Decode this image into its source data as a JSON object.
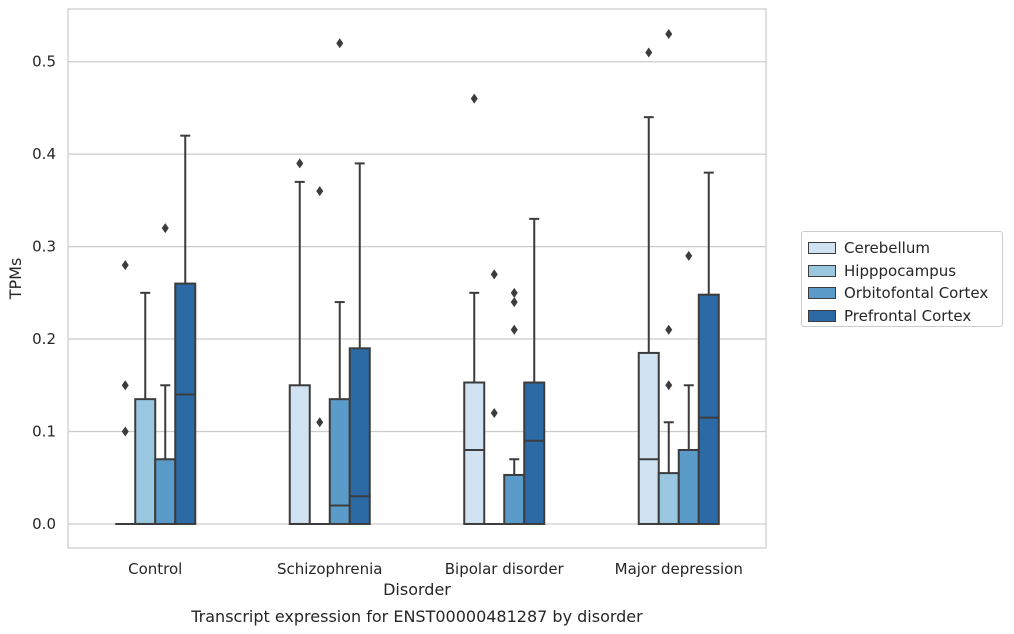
{
  "chart_data": {
    "type": "box",
    "title": "Transcript expression for ENST00000481287 by disorder",
    "xlabel": "Disorder",
    "ylabel": "TPMs",
    "ylim": [
      -0.026,
      0.557
    ],
    "yticks": [
      0.0,
      0.1,
      0.2,
      0.3,
      0.4,
      0.5
    ],
    "ytick_labels": [
      "0.0",
      "0.1",
      "0.2",
      "0.3",
      "0.4",
      "0.5"
    ],
    "categories": [
      "Control",
      "Schizophrenia",
      "Bipolar disorder",
      "Major depression"
    ],
    "grid": true,
    "legend_position": "right",
    "series": [
      {
        "name": "Cerebellum",
        "color": "#d1e2f2",
        "boxes": [
          {
            "q1": 0,
            "median": 0,
            "q3": 0,
            "whisker_low": 0,
            "whisker_high": 0,
            "outliers": [
              0.1,
              0.15,
              0.28
            ]
          },
          {
            "q1": 0,
            "median": 0,
            "q3": 0.15,
            "whisker_low": 0,
            "whisker_high": 0.37,
            "outliers": [
              0.39
            ]
          },
          {
            "q1": 0,
            "median": 0.08,
            "q3": 0.153,
            "whisker_low": 0,
            "whisker_high": 0.25,
            "outliers": [
              0.46
            ]
          },
          {
            "q1": 0,
            "median": 0.07,
            "q3": 0.185,
            "whisker_low": 0,
            "whisker_high": 0.44,
            "outliers": [
              0.51
            ]
          }
        ]
      },
      {
        "name": "Hipppocampus",
        "color": "#9ac7e0",
        "boxes": [
          {
            "q1": 0,
            "median": 0,
            "q3": 0.135,
            "whisker_low": 0,
            "whisker_high": 0.25,
            "outliers": []
          },
          {
            "q1": 0,
            "median": 0,
            "q3": 0,
            "whisker_low": 0,
            "whisker_high": 0,
            "outliers": [
              0.11,
              0.36
            ]
          },
          {
            "q1": 0,
            "median": 0,
            "q3": 0,
            "whisker_low": 0,
            "whisker_high": 0,
            "outliers": [
              0.12,
              0.27
            ]
          },
          {
            "q1": 0,
            "median": 0,
            "q3": 0.055,
            "whisker_low": 0,
            "whisker_high": 0.11,
            "outliers": [
              0.15,
              0.21,
              0.53
            ]
          }
        ]
      },
      {
        "name": "Orbitofontal Cortex",
        "color": "#5b9bc9",
        "boxes": [
          {
            "q1": 0,
            "median": 0,
            "q3": 0.07,
            "whisker_low": 0,
            "whisker_high": 0.15,
            "outliers": [
              0.32
            ]
          },
          {
            "q1": 0,
            "median": 0.02,
            "q3": 0.135,
            "whisker_low": 0,
            "whisker_high": 0.24,
            "outliers": [
              0.52
            ]
          },
          {
            "q1": 0,
            "median": 0,
            "q3": 0.053,
            "whisker_low": 0,
            "whisker_high": 0.07,
            "outliers": [
              0.21,
              0.24,
              0.25
            ]
          },
          {
            "q1": 0,
            "median": 0,
            "q3": 0.08,
            "whisker_low": 0,
            "whisker_high": 0.15,
            "outliers": [
              0.29
            ]
          }
        ]
      },
      {
        "name": "Prefrontal Cortex",
        "color": "#2c6aa6",
        "boxes": [
          {
            "q1": 0,
            "median": 0.14,
            "q3": 0.26,
            "whisker_low": 0,
            "whisker_high": 0.42,
            "outliers": []
          },
          {
            "q1": 0,
            "median": 0.03,
            "q3": 0.19,
            "whisker_low": 0,
            "whisker_high": 0.39,
            "outliers": []
          },
          {
            "q1": 0,
            "median": 0.09,
            "q3": 0.153,
            "whisker_low": 0,
            "whisker_high": 0.33,
            "outliers": []
          },
          {
            "q1": 0,
            "median": 0.115,
            "q3": 0.248,
            "whisker_low": 0,
            "whisker_high": 0.38,
            "outliers": []
          }
        ]
      }
    ]
  }
}
